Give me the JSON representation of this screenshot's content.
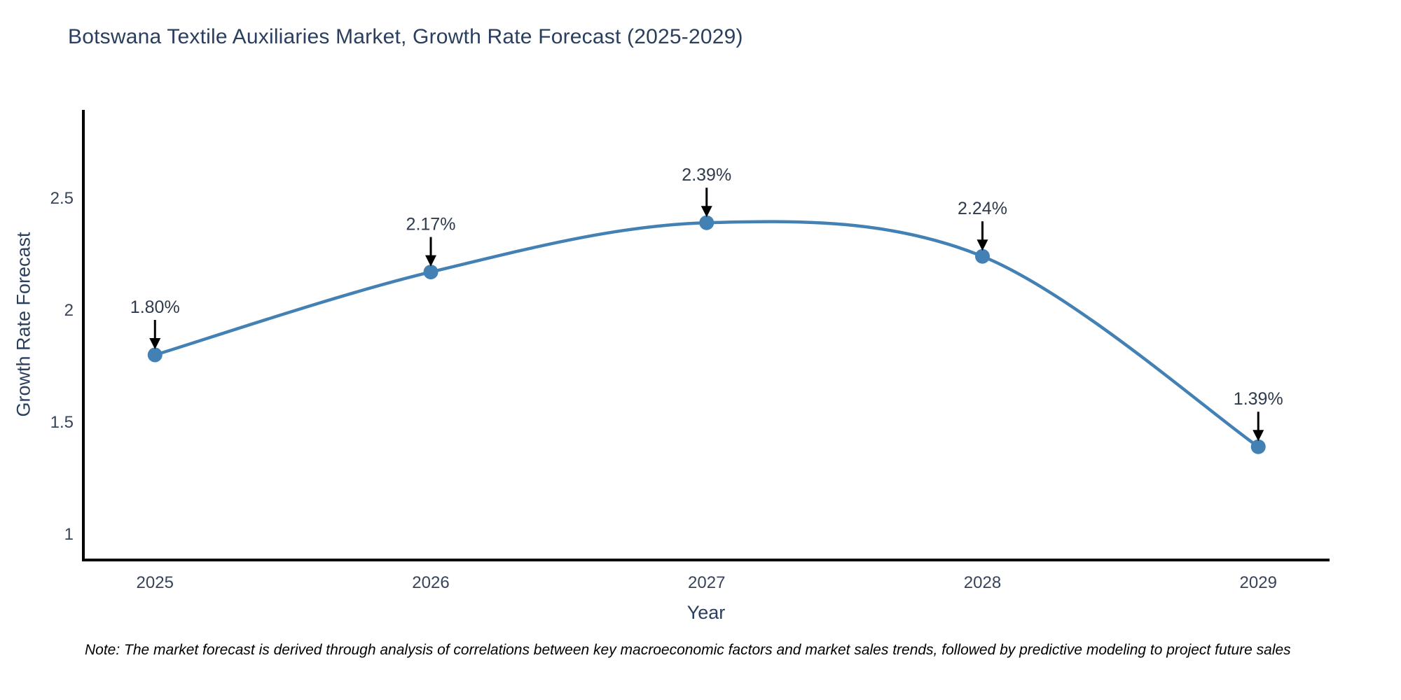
{
  "page": {
    "background": "#ffffff",
    "note": "Note: The market forecast is derived through analysis of correlations between key macroeconomic factors and market sales trends, followed by predictive modeling to project future sales"
  },
  "chart_data": {
    "type": "line",
    "title": "Botswana Textile Auxiliaries Market, Growth Rate Forecast (2025-2029)",
    "xlabel": "Year",
    "ylabel": "Growth Rate Forecast",
    "x": [
      2025,
      2026,
      2027,
      2028,
      2029
    ],
    "values": [
      1.8,
      2.17,
      2.39,
      2.24,
      1.39
    ],
    "point_labels": [
      "1.80%",
      "2.17%",
      "2.39%",
      "2.24%",
      "1.39%"
    ],
    "xticks": [
      "2025",
      "2026",
      "2027",
      "2028",
      "2029"
    ],
    "yticks": [
      1,
      1.5,
      2,
      2.5
    ],
    "ytick_labels": [
      "1",
      "1.5",
      "2",
      "2.5"
    ],
    "ylim": [
      0.88,
      2.9
    ],
    "line_shape": "spline",
    "grid": false,
    "legend_position": "none",
    "colors": {
      "line": "#4381b5",
      "marker": "#4381b5",
      "axis_line": "#000000",
      "arrow": "#000000",
      "title_text": "#2a3f5f",
      "tick_text": "#37445a",
      "annotation_text": "#2f3b4c"
    }
  }
}
